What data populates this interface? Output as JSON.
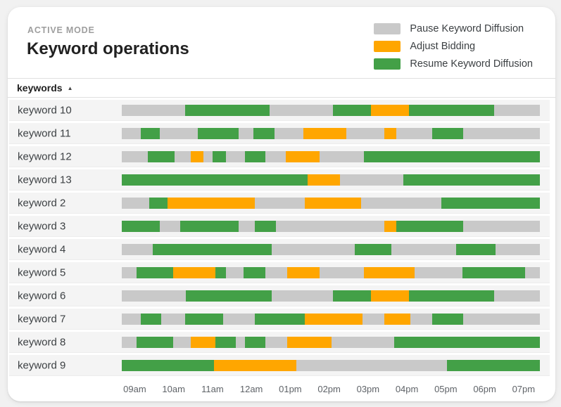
{
  "header": {
    "eyebrow": "ACTIVE MODE",
    "title": "Keyword operations"
  },
  "legend": {
    "items": [
      {
        "id": "pause",
        "label": "Pause Keyword Diffusion",
        "color": "#C9C9C9"
      },
      {
        "id": "adjust",
        "label": "Adjust Bidding",
        "color": "#FFA600"
      },
      {
        "id": "resume",
        "label": "Resume Keyword Diffusion",
        "color": "#43A047"
      }
    ]
  },
  "table": {
    "sort_column": "keywords",
    "sort_direction": "ascending",
    "sort_icon": "▲"
  },
  "chart_data": {
    "type": "bar",
    "variant": "horizontal-stacked-timeline",
    "title": "Keyword operations",
    "xlabel": "",
    "ylabel": "keywords",
    "grid": false,
    "legend_position": "top-right",
    "operations": {
      "pause": "Pause Keyword Diffusion",
      "adjust": "Adjust Bidding",
      "resume": "Resume Keyword Diffusion"
    },
    "x_axis": {
      "ticks": [
        {
          "label": "09am",
          "pct": 3.1
        },
        {
          "label": "10am",
          "pct": 12.4
        },
        {
          "label": "11am",
          "pct": 21.7
        },
        {
          "label": "12am",
          "pct": 31.0
        },
        {
          "label": "01pm",
          "pct": 40.3
        },
        {
          "label": "02pm",
          "pct": 49.6
        },
        {
          "label": "03pm",
          "pct": 58.9
        },
        {
          "label": "04pm",
          "pct": 68.2
        },
        {
          "label": "05pm",
          "pct": 77.5
        },
        {
          "label": "06pm",
          "pct": 86.8
        },
        {
          "label": "07pm",
          "pct": 96.1
        }
      ]
    },
    "rows": [
      {
        "label": "keyword 10",
        "segments": [
          {
            "op": "pause",
            "start": 0,
            "end": 15.1
          },
          {
            "op": "resume",
            "start": 15.1,
            "end": 35.4
          },
          {
            "op": "pause",
            "start": 35.4,
            "end": 50.5
          },
          {
            "op": "resume",
            "start": 50.5,
            "end": 59.6
          },
          {
            "op": "adjust",
            "start": 59.6,
            "end": 68.7
          },
          {
            "op": "resume",
            "start": 68.7,
            "end": 89.1
          },
          {
            "op": "pause",
            "start": 89.1,
            "end": 100
          }
        ]
      },
      {
        "label": "keyword 11",
        "segments": [
          {
            "op": "pause",
            "start": 0,
            "end": 4.5
          },
          {
            "op": "resume",
            "start": 4.5,
            "end": 9.1
          },
          {
            "op": "pause",
            "start": 9.1,
            "end": 18.2
          },
          {
            "op": "resume",
            "start": 18.2,
            "end": 28.0
          },
          {
            "op": "pause",
            "start": 28.0,
            "end": 31.5
          },
          {
            "op": "resume",
            "start": 31.5,
            "end": 36.5
          },
          {
            "op": "pause",
            "start": 36.5,
            "end": 43.5
          },
          {
            "op": "adjust",
            "start": 43.5,
            "end": 53.7
          },
          {
            "op": "pause",
            "start": 53.7,
            "end": 62.8
          },
          {
            "op": "adjust",
            "start": 62.8,
            "end": 65.6
          },
          {
            "op": "pause",
            "start": 65.6,
            "end": 74.3
          },
          {
            "op": "resume",
            "start": 74.3,
            "end": 81.7
          },
          {
            "op": "pause",
            "start": 81.7,
            "end": 100
          }
        ]
      },
      {
        "label": "keyword 12",
        "segments": [
          {
            "op": "pause",
            "start": 0,
            "end": 6.3
          },
          {
            "op": "resume",
            "start": 6.3,
            "end": 12.6
          },
          {
            "op": "pause",
            "start": 12.6,
            "end": 16.5
          },
          {
            "op": "adjust",
            "start": 16.5,
            "end": 19.6
          },
          {
            "op": "pause",
            "start": 19.6,
            "end": 21.7
          },
          {
            "op": "resume",
            "start": 21.7,
            "end": 24.9
          },
          {
            "op": "pause",
            "start": 24.9,
            "end": 29.4
          },
          {
            "op": "resume",
            "start": 29.4,
            "end": 34.4
          },
          {
            "op": "pause",
            "start": 34.4,
            "end": 39.3
          },
          {
            "op": "adjust",
            "start": 39.3,
            "end": 47.3
          },
          {
            "op": "pause",
            "start": 47.3,
            "end": 57.9
          },
          {
            "op": "resume",
            "start": 57.9,
            "end": 100
          }
        ]
      },
      {
        "label": "keyword 13",
        "segments": [
          {
            "op": "resume",
            "start": 0,
            "end": 44.5
          },
          {
            "op": "adjust",
            "start": 44.5,
            "end": 52.2
          },
          {
            "op": "pause",
            "start": 52.2,
            "end": 67.3
          },
          {
            "op": "resume",
            "start": 67.3,
            "end": 100
          }
        ]
      },
      {
        "label": "keyword 2",
        "segments": [
          {
            "op": "pause",
            "start": 0,
            "end": 6.6
          },
          {
            "op": "resume",
            "start": 6.6,
            "end": 10.9
          },
          {
            "op": "adjust",
            "start": 10.9,
            "end": 31.9
          },
          {
            "op": "pause",
            "start": 31.9,
            "end": 43.8
          },
          {
            "op": "adjust",
            "start": 43.8,
            "end": 57.2
          },
          {
            "op": "pause",
            "start": 57.2,
            "end": 76.4
          },
          {
            "op": "resume",
            "start": 76.4,
            "end": 100
          }
        ]
      },
      {
        "label": "keyword 3",
        "segments": [
          {
            "op": "resume",
            "start": 0,
            "end": 9.1
          },
          {
            "op": "pause",
            "start": 9.1,
            "end": 14.0
          },
          {
            "op": "resume",
            "start": 14.0,
            "end": 28.0
          },
          {
            "op": "pause",
            "start": 28.0,
            "end": 31.9
          },
          {
            "op": "resume",
            "start": 31.9,
            "end": 36.8
          },
          {
            "op": "pause",
            "start": 36.8,
            "end": 62.8
          },
          {
            "op": "adjust",
            "start": 62.8,
            "end": 65.6
          },
          {
            "op": "resume",
            "start": 65.6,
            "end": 81.7
          },
          {
            "op": "pause",
            "start": 81.7,
            "end": 100
          }
        ]
      },
      {
        "label": "keyword 4",
        "segments": [
          {
            "op": "pause",
            "start": 0,
            "end": 7.4
          },
          {
            "op": "resume",
            "start": 7.4,
            "end": 35.8
          },
          {
            "op": "pause",
            "start": 35.8,
            "end": 55.8
          },
          {
            "op": "resume",
            "start": 55.8,
            "end": 64.5
          },
          {
            "op": "pause",
            "start": 64.5,
            "end": 79.9
          },
          {
            "op": "resume",
            "start": 79.9,
            "end": 89.4
          },
          {
            "op": "pause",
            "start": 89.4,
            "end": 100
          }
        ]
      },
      {
        "label": "keyword 5",
        "segments": [
          {
            "op": "pause",
            "start": 0,
            "end": 3.5
          },
          {
            "op": "resume",
            "start": 3.5,
            "end": 12.3
          },
          {
            "op": "adjust",
            "start": 12.3,
            "end": 22.4
          },
          {
            "op": "resume",
            "start": 22.4,
            "end": 24.9
          },
          {
            "op": "pause",
            "start": 24.9,
            "end": 29.1
          },
          {
            "op": "resume",
            "start": 29.1,
            "end": 34.4
          },
          {
            "op": "pause",
            "start": 34.4,
            "end": 39.6
          },
          {
            "op": "adjust",
            "start": 39.6,
            "end": 47.3
          },
          {
            "op": "pause",
            "start": 47.3,
            "end": 57.9
          },
          {
            "op": "adjust",
            "start": 57.9,
            "end": 70.1
          },
          {
            "op": "pause",
            "start": 70.1,
            "end": 81.4
          },
          {
            "op": "resume",
            "start": 81.4,
            "end": 96.5
          },
          {
            "op": "pause",
            "start": 96.5,
            "end": 100
          }
        ]
      },
      {
        "label": "keyword 6",
        "segments": [
          {
            "op": "pause",
            "start": 0,
            "end": 15.4
          },
          {
            "op": "resume",
            "start": 15.4,
            "end": 35.8
          },
          {
            "op": "pause",
            "start": 35.8,
            "end": 50.5
          },
          {
            "op": "resume",
            "start": 50.5,
            "end": 59.6
          },
          {
            "op": "adjust",
            "start": 59.6,
            "end": 68.7
          },
          {
            "op": "resume",
            "start": 68.7,
            "end": 89.1
          },
          {
            "op": "pause",
            "start": 89.1,
            "end": 100
          }
        ]
      },
      {
        "label": "keyword 7",
        "segments": [
          {
            "op": "pause",
            "start": 0,
            "end": 4.5
          },
          {
            "op": "resume",
            "start": 4.5,
            "end": 9.5
          },
          {
            "op": "pause",
            "start": 9.5,
            "end": 15.1
          },
          {
            "op": "resume",
            "start": 15.1,
            "end": 24.2
          },
          {
            "op": "pause",
            "start": 24.2,
            "end": 31.9
          },
          {
            "op": "resume",
            "start": 31.9,
            "end": 43.8
          },
          {
            "op": "adjust",
            "start": 43.8,
            "end": 57.5
          },
          {
            "op": "pause",
            "start": 57.5,
            "end": 62.8
          },
          {
            "op": "adjust",
            "start": 62.8,
            "end": 69.1
          },
          {
            "op": "pause",
            "start": 69.1,
            "end": 74.3
          },
          {
            "op": "resume",
            "start": 74.3,
            "end": 81.7
          },
          {
            "op": "pause",
            "start": 81.7,
            "end": 100
          }
        ]
      },
      {
        "label": "keyword 8",
        "segments": [
          {
            "op": "pause",
            "start": 0,
            "end": 3.5
          },
          {
            "op": "resume",
            "start": 3.5,
            "end": 12.3
          },
          {
            "op": "pause",
            "start": 12.3,
            "end": 16.5
          },
          {
            "op": "adjust",
            "start": 16.5,
            "end": 22.4
          },
          {
            "op": "resume",
            "start": 22.4,
            "end": 27.3
          },
          {
            "op": "pause",
            "start": 27.3,
            "end": 29.4
          },
          {
            "op": "resume",
            "start": 29.4,
            "end": 34.4
          },
          {
            "op": "pause",
            "start": 34.4,
            "end": 39.6
          },
          {
            "op": "adjust",
            "start": 39.6,
            "end": 50.1
          },
          {
            "op": "pause",
            "start": 50.1,
            "end": 65.2
          },
          {
            "op": "resume",
            "start": 65.2,
            "end": 100
          }
        ]
      },
      {
        "label": "keyword 9",
        "segments": [
          {
            "op": "resume",
            "start": 0,
            "end": 22.1
          },
          {
            "op": "adjust",
            "start": 22.1,
            "end": 41.7
          },
          {
            "op": "pause",
            "start": 41.7,
            "end": 77.8
          },
          {
            "op": "resume",
            "start": 77.8,
            "end": 100
          }
        ]
      }
    ]
  }
}
